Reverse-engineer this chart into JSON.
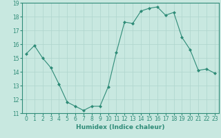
{
  "x": [
    0,
    1,
    2,
    3,
    4,
    5,
    6,
    7,
    8,
    9,
    10,
    11,
    12,
    13,
    14,
    15,
    16,
    17,
    18,
    19,
    20,
    21,
    22,
    23
  ],
  "y": [
    15.3,
    15.9,
    15.0,
    14.3,
    13.1,
    11.8,
    11.5,
    11.2,
    11.5,
    11.5,
    12.9,
    15.4,
    17.6,
    17.5,
    18.4,
    18.6,
    18.7,
    18.1,
    18.3,
    16.5,
    15.6,
    14.1,
    14.2,
    13.9
  ],
  "line_color": "#2e8b77",
  "marker": "D",
  "marker_size": 2,
  "bg_color": "#c8e8e0",
  "grid_color": "#aed4cc",
  "xlabel": "Humidex (Indice chaleur)",
  "xlim": [
    -0.5,
    23.5
  ],
  "ylim": [
    11,
    19
  ],
  "yticks": [
    11,
    12,
    13,
    14,
    15,
    16,
    17,
    18,
    19
  ],
  "xticks": [
    0,
    1,
    2,
    3,
    4,
    5,
    6,
    7,
    8,
    9,
    10,
    11,
    12,
    13,
    14,
    15,
    16,
    17,
    18,
    19,
    20,
    21,
    22,
    23
  ],
  "label_fontsize": 6.5,
  "tick_fontsize": 5.5
}
